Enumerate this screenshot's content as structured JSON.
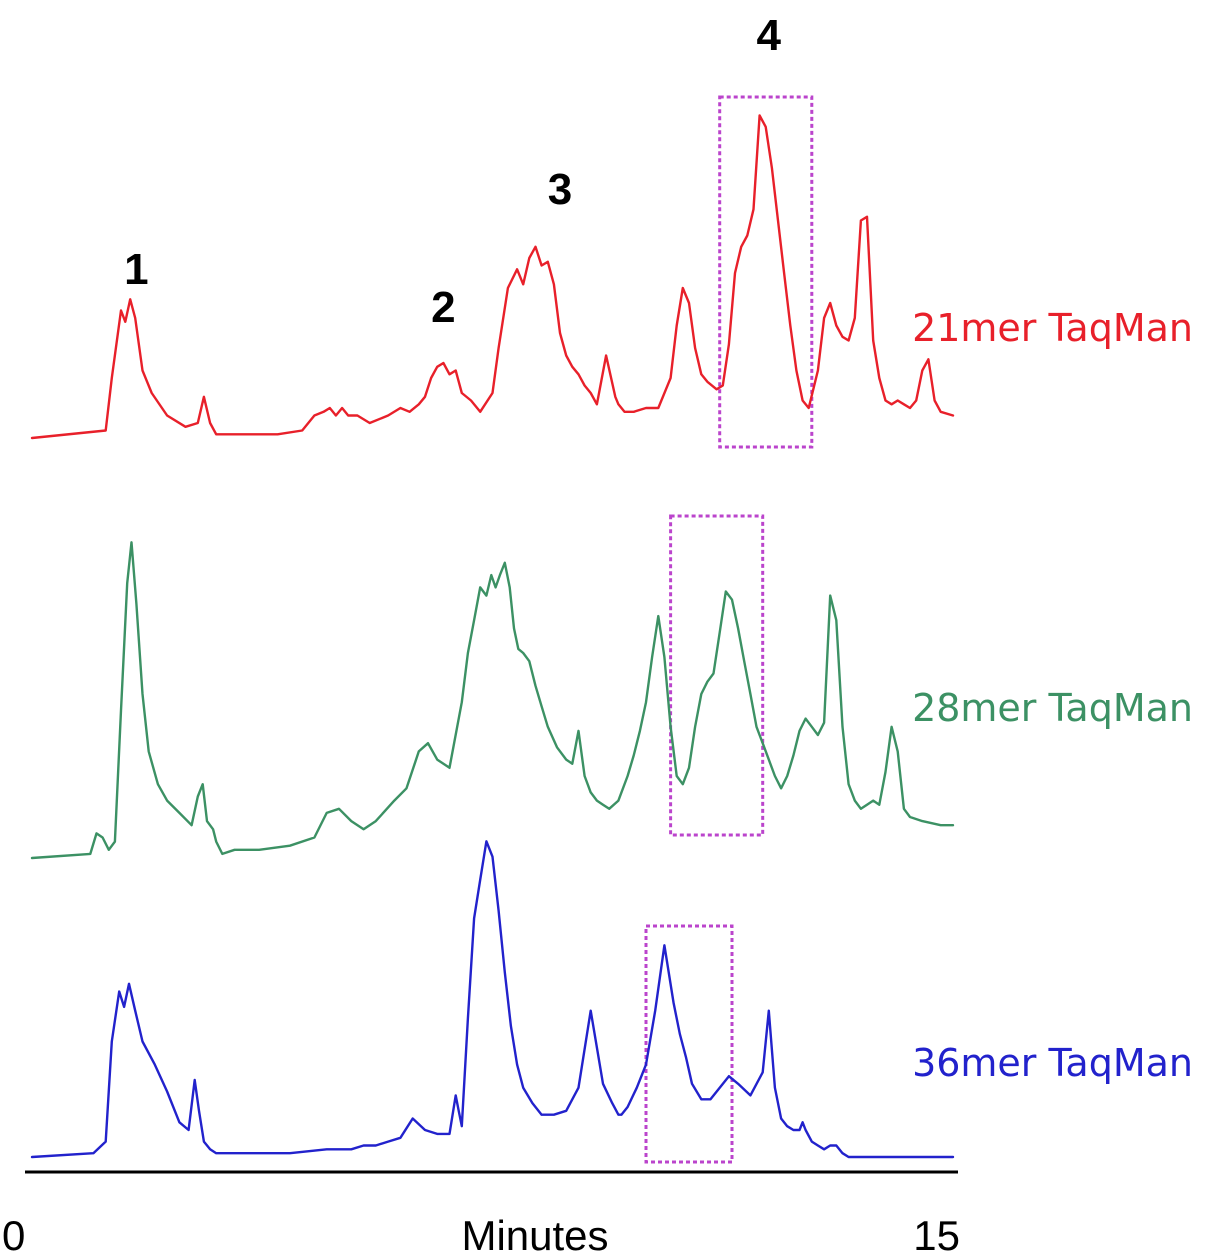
{
  "chart_data": {
    "type": "line",
    "title": "",
    "xlabel": "Minutes",
    "ylabel": "",
    "xlim": [
      0,
      15
    ],
    "x_tick_labels": [
      "0",
      "15"
    ],
    "grid": false,
    "peak_labels": [
      {
        "text": "1",
        "x": 1.7
      },
      {
        "text": "2",
        "x": 6.7
      },
      {
        "text": "3",
        "x": 8.6
      },
      {
        "text": "4",
        "x": 12.0
      }
    ],
    "series": [
      {
        "name": "21mer TaqMan",
        "color": "#e8202a",
        "highlight": [
          11.2,
          12.7
        ],
        "x": [
          0.0,
          1.2,
          1.3,
          1.45,
          1.52,
          1.6,
          1.68,
          1.8,
          1.95,
          2.2,
          2.5,
          2.7,
          2.8,
          2.9,
          3.0,
          3.1,
          3.3,
          3.6,
          4.0,
          4.4,
          4.6,
          4.75,
          4.85,
          4.95,
          5.05,
          5.15,
          5.3,
          5.5,
          5.8,
          6.0,
          6.15,
          6.3,
          6.4,
          6.5,
          6.6,
          6.7,
          6.8,
          6.9,
          7.0,
          7.15,
          7.3,
          7.5,
          7.6,
          7.75,
          7.9,
          8.0,
          8.1,
          8.2,
          8.3,
          8.4,
          8.5,
          8.6,
          8.7,
          8.8,
          8.9,
          9.0,
          9.1,
          9.2,
          9.35,
          9.5,
          9.55,
          9.65,
          9.8,
          10.0,
          10.2,
          10.4,
          10.5,
          10.6,
          10.7,
          10.8,
          10.9,
          11.0,
          11.15,
          11.25,
          11.35,
          11.45,
          11.55,
          11.65,
          11.75,
          11.85,
          11.95,
          12.05,
          12.15,
          12.25,
          12.35,
          12.45,
          12.55,
          12.65,
          12.8,
          12.9,
          13.0,
          13.1,
          13.2,
          13.3,
          13.4,
          13.5,
          13.6,
          13.7,
          13.8,
          13.9,
          14.0,
          14.1,
          14.2,
          14.3,
          14.4,
          14.5,
          14.6,
          14.7,
          14.8,
          15.0
        ],
        "y": [
          0.0,
          0.1,
          0.8,
          1.7,
          1.55,
          1.85,
          1.6,
          0.9,
          0.6,
          0.3,
          0.15,
          0.2,
          0.55,
          0.2,
          0.05,
          0.05,
          0.05,
          0.05,
          0.05,
          0.1,
          0.3,
          0.35,
          0.4,
          0.3,
          0.4,
          0.3,
          0.3,
          0.2,
          0.3,
          0.4,
          0.35,
          0.45,
          0.55,
          0.8,
          0.95,
          1.0,
          0.85,
          0.9,
          0.6,
          0.5,
          0.35,
          0.6,
          1.2,
          2.0,
          2.25,
          2.05,
          2.4,
          2.55,
          2.3,
          2.35,
          2.05,
          1.4,
          1.1,
          0.95,
          0.85,
          0.7,
          0.6,
          0.45,
          1.1,
          0.55,
          0.45,
          0.35,
          0.35,
          0.4,
          0.4,
          0.8,
          1.5,
          2.0,
          1.8,
          1.2,
          0.85,
          0.75,
          0.65,
          0.7,
          1.25,
          2.2,
          2.55,
          2.7,
          3.05,
          4.3,
          4.15,
          3.6,
          2.9,
          2.2,
          1.5,
          0.9,
          0.5,
          0.4,
          0.9,
          1.6,
          1.8,
          1.5,
          1.35,
          1.3,
          1.6,
          2.9,
          2.95,
          1.3,
          0.8,
          0.5,
          0.45,
          0.5,
          0.45,
          0.4,
          0.5,
          0.9,
          1.05,
          0.5,
          0.35,
          0.3
        ]
      },
      {
        "name": "28mer TaqMan",
        "color": "#3c9164",
        "highlight": [
          10.4,
          11.9
        ],
        "x": [
          0.0,
          0.95,
          1.05,
          1.15,
          1.25,
          1.35,
          1.45,
          1.55,
          1.62,
          1.7,
          1.8,
          1.9,
          2.05,
          2.2,
          2.4,
          2.6,
          2.7,
          2.78,
          2.85,
          2.95,
          3.0,
          3.1,
          3.3,
          3.7,
          4.2,
          4.6,
          4.8,
          5.0,
          5.2,
          5.4,
          5.6,
          5.9,
          6.1,
          6.3,
          6.45,
          6.6,
          6.8,
          7.0,
          7.1,
          7.2,
          7.3,
          7.4,
          7.48,
          7.55,
          7.62,
          7.7,
          7.78,
          7.85,
          7.92,
          8.0,
          8.1,
          8.2,
          8.3,
          8.4,
          8.55,
          8.7,
          8.8,
          8.9,
          9.0,
          9.1,
          9.2,
          9.3,
          9.4,
          9.55,
          9.7,
          9.8,
          9.9,
          10.0,
          10.1,
          10.2,
          10.3,
          10.4,
          10.5,
          10.6,
          10.7,
          10.8,
          10.9,
          11.0,
          11.1,
          11.2,
          11.3,
          11.4,
          11.5,
          11.6,
          11.7,
          11.8,
          11.9,
          12.0,
          12.1,
          12.2,
          12.3,
          12.4,
          12.5,
          12.6,
          12.7,
          12.8,
          12.9,
          13.0,
          13.1,
          13.2,
          13.3,
          13.4,
          13.5,
          13.6,
          13.7,
          13.8,
          13.9,
          14.0,
          14.1,
          14.2,
          14.3,
          14.5,
          14.8,
          15.0
        ],
        "y": [
          0.0,
          0.05,
          0.3,
          0.25,
          0.1,
          0.2,
          1.8,
          3.35,
          3.85,
          3.1,
          2.0,
          1.3,
          0.9,
          0.7,
          0.55,
          0.4,
          0.75,
          0.9,
          0.45,
          0.35,
          0.2,
          0.05,
          0.1,
          0.1,
          0.15,
          0.25,
          0.55,
          0.6,
          0.45,
          0.35,
          0.45,
          0.7,
          0.85,
          1.3,
          1.4,
          1.2,
          1.1,
          1.9,
          2.5,
          2.9,
          3.3,
          3.2,
          3.45,
          3.3,
          3.45,
          3.6,
          3.3,
          2.8,
          2.55,
          2.5,
          2.4,
          2.1,
          1.85,
          1.6,
          1.35,
          1.2,
          1.15,
          1.55,
          1.0,
          0.8,
          0.7,
          0.65,
          0.6,
          0.7,
          1.0,
          1.25,
          1.55,
          1.9,
          2.45,
          2.95,
          2.45,
          1.6,
          1.0,
          0.9,
          1.1,
          1.6,
          2.0,
          2.15,
          2.25,
          2.75,
          3.25,
          3.15,
          2.8,
          2.4,
          2.0,
          1.6,
          1.4,
          1.2,
          1.0,
          0.85,
          1.0,
          1.25,
          1.55,
          1.7,
          1.6,
          1.5,
          1.65,
          3.2,
          2.9,
          1.6,
          0.9,
          0.7,
          0.6,
          0.65,
          0.7,
          0.65,
          1.05,
          1.6,
          1.3,
          0.6,
          0.5,
          0.45,
          0.4,
          0.4
        ]
      },
      {
        "name": "36mer TaqMan",
        "color": "#2222cc",
        "highlight": [
          10.0,
          11.4
        ],
        "x": [
          0.0,
          1.0,
          1.2,
          1.3,
          1.42,
          1.5,
          1.58,
          1.68,
          1.8,
          2.0,
          2.2,
          2.4,
          2.55,
          2.65,
          2.72,
          2.8,
          2.9,
          3.0,
          3.2,
          3.6,
          4.2,
          4.8,
          5.2,
          5.4,
          5.6,
          5.8,
          6.0,
          6.2,
          6.4,
          6.6,
          6.8,
          6.9,
          6.95,
          7.0,
          7.1,
          7.2,
          7.3,
          7.4,
          7.5,
          7.6,
          7.7,
          7.8,
          7.9,
          8.0,
          8.15,
          8.3,
          8.5,
          8.7,
          8.9,
          9.1,
          9.3,
          9.45,
          9.55,
          9.6,
          9.7,
          9.85,
          10.0,
          10.15,
          10.3,
          10.45,
          10.55,
          10.65,
          10.75,
          10.9,
          11.05,
          11.2,
          11.35,
          11.5,
          11.7,
          11.9,
          12.0,
          12.1,
          12.2,
          12.3,
          12.4,
          12.5,
          12.55,
          12.6,
          12.7,
          12.8,
          12.9,
          13.0,
          13.1,
          13.2,
          13.3,
          13.4,
          13.5,
          13.6,
          13.7,
          13.8,
          13.9,
          14.0,
          14.2,
          14.4,
          14.7,
          15.0
        ],
        "y": [
          0.0,
          0.05,
          0.2,
          1.5,
          2.15,
          1.95,
          2.25,
          1.9,
          1.5,
          1.2,
          0.85,
          0.45,
          0.35,
          1.0,
          0.6,
          0.2,
          0.1,
          0.05,
          0.05,
          0.05,
          0.05,
          0.1,
          0.1,
          0.15,
          0.15,
          0.2,
          0.25,
          0.5,
          0.35,
          0.3,
          0.3,
          0.8,
          0.6,
          0.4,
          1.8,
          3.1,
          3.6,
          4.1,
          3.9,
          3.2,
          2.4,
          1.7,
          1.2,
          0.9,
          0.7,
          0.55,
          0.55,
          0.6,
          0.9,
          1.9,
          0.95,
          0.7,
          0.55,
          0.55,
          0.65,
          0.9,
          1.2,
          1.9,
          2.75,
          2.0,
          1.6,
          1.3,
          0.95,
          0.75,
          0.75,
          0.9,
          1.05,
          0.95,
          0.8,
          1.1,
          1.9,
          0.9,
          0.5,
          0.4,
          0.35,
          0.35,
          0.45,
          0.35,
          0.2,
          0.15,
          0.1,
          0.15,
          0.15,
          0.05,
          0.0,
          0.0,
          0.0,
          0.0,
          0.0,
          0.0,
          0.0,
          0.0,
          0.0,
          0.0,
          0.0,
          0.0
        ]
      }
    ]
  }
}
